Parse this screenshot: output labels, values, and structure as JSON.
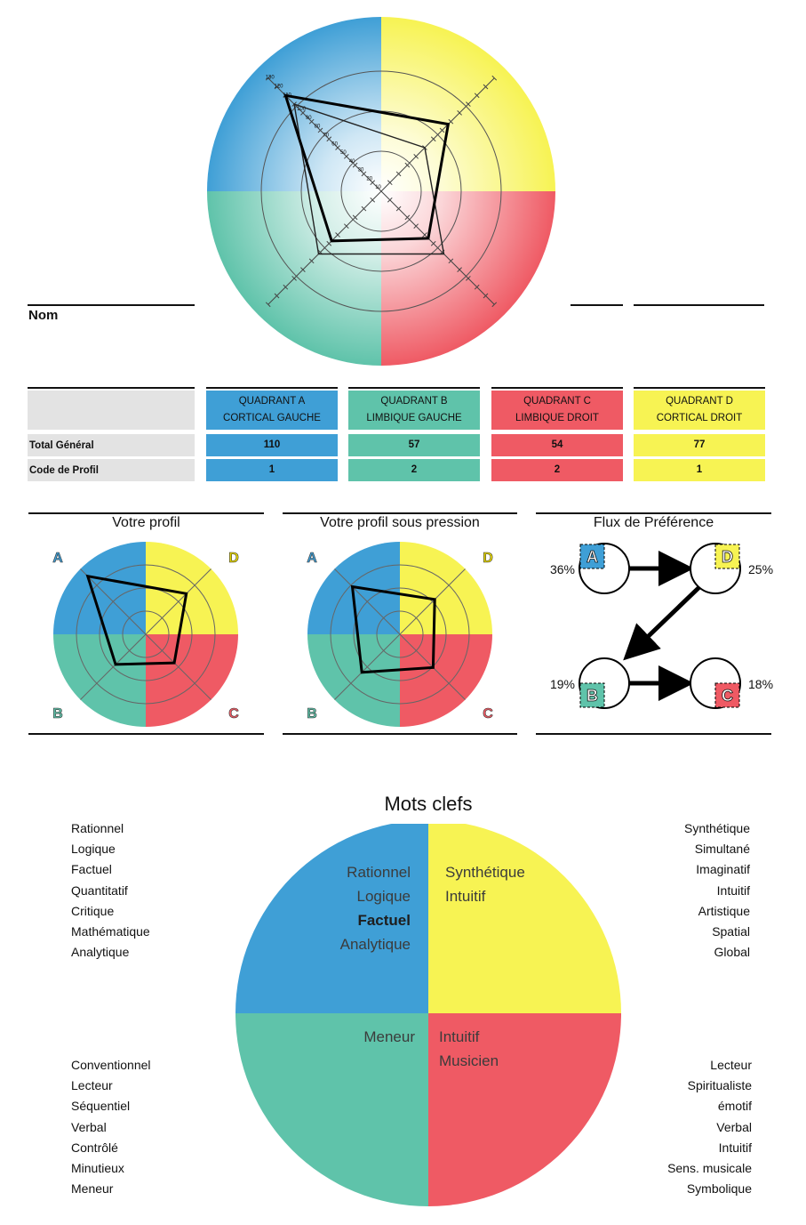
{
  "nom_label": "Nom",
  "colors": {
    "A": "#3f9fd6",
    "B": "#5fc3aa",
    "C": "#ef5a64",
    "D": "#f7f353",
    "header_gray": "#e3e3e3"
  },
  "top_chart": {
    "scale_labels": [
      "130",
      "120",
      "110",
      "100",
      "90",
      "80",
      "70",
      "60",
      "50",
      "40",
      "30",
      "20",
      "10"
    ],
    "profile": {
      "A": 110,
      "B": 57,
      "C": 54,
      "D": 77
    },
    "secondary_profile": {
      "A": 100,
      "B": 72,
      "C": 72,
      "D": 50
    }
  },
  "table": {
    "quadrants": [
      {
        "key": "A",
        "line1": "QUADRANT A",
        "line2": "CORTICAL GAUCHE",
        "total": "110",
        "code": "1"
      },
      {
        "key": "B",
        "line1": "QUADRANT B",
        "line2": "LIMBIQUE GAUCHE",
        "total": "57",
        "code": "2"
      },
      {
        "key": "C",
        "line1": "QUADRANT C",
        "line2": "LIMBIQUE DROIT",
        "total": "54",
        "code": "2"
      },
      {
        "key": "D",
        "line1": "QUADRANT D",
        "line2": "CORTICAL DROIT",
        "total": "77",
        "code": "1"
      }
    ],
    "row_total_label": "Total Général",
    "row_code_label": "Code de Profil"
  },
  "small_charts": {
    "votre_profil": {
      "title": "Votre profil",
      "values": {
        "A": 110,
        "B": 57,
        "C": 54,
        "D": 77
      }
    },
    "sous_pression": {
      "title": "Votre profil sous pression",
      "values": {
        "A": 90,
        "B": 72,
        "C": 63,
        "D": 66
      }
    },
    "letters": {
      "A": "A",
      "B": "B",
      "C": "C",
      "D": "D"
    }
  },
  "flux": {
    "title": "Flux de Préférence",
    "A": "36%",
    "D": "25%",
    "B": "19%",
    "C": "18%"
  },
  "chart_data": [
    {
      "type": "radar",
      "title": "",
      "categories": [
        "A",
        "D",
        "C",
        "B"
      ],
      "series": [
        {
          "values": [
            110,
            77,
            54,
            57
          ]
        },
        {
          "values": [
            100,
            50,
            72,
            72
          ]
        }
      ],
      "ylim": [
        0,
        130
      ]
    },
    {
      "type": "radar",
      "title": "Votre profil",
      "categories": [
        "A",
        "D",
        "C",
        "B"
      ],
      "series": [
        {
          "values": [
            110,
            77,
            54,
            57
          ]
        }
      ]
    },
    {
      "type": "radar",
      "title": "Votre profil sous pression",
      "categories": [
        "A",
        "D",
        "C",
        "B"
      ],
      "series": [
        {
          "values": [
            90,
            66,
            63,
            72
          ]
        }
      ]
    },
    {
      "type": "pie",
      "title": "Mots clefs",
      "categories": [
        "A",
        "D",
        "C",
        "B"
      ],
      "values": [
        25,
        25,
        25,
        25
      ]
    }
  ],
  "keywords": {
    "title": "Mots clefs",
    "pie": {
      "A": [
        "Rationnel",
        "Logique",
        "Factuel",
        "Analytique"
      ],
      "A_bold": "Factuel",
      "D": [
        "Synthétique",
        "Intuitif"
      ],
      "B": [
        "Meneur"
      ],
      "C": [
        "Intuitif",
        "Musicien"
      ]
    },
    "left_top": [
      "Rationnel",
      "Logique",
      "Factuel",
      "Quantitatif",
      "Critique",
      "Mathématique",
      "Analytique"
    ],
    "right_top": [
      "Synthétique",
      "Simultané",
      "Imaginatif",
      "Intuitif",
      "Artistique",
      "Spatial",
      "Global"
    ],
    "left_bottom": [
      "Conventionnel",
      "Lecteur",
      "Séquentiel",
      "Verbal",
      "Contrôlé",
      "Minutieux",
      "Meneur"
    ],
    "right_bottom": [
      "Lecteur",
      "Spiritualiste",
      "émotif",
      "Verbal",
      "Intuitif",
      "Sens. musicale",
      "Symbolique"
    ]
  }
}
